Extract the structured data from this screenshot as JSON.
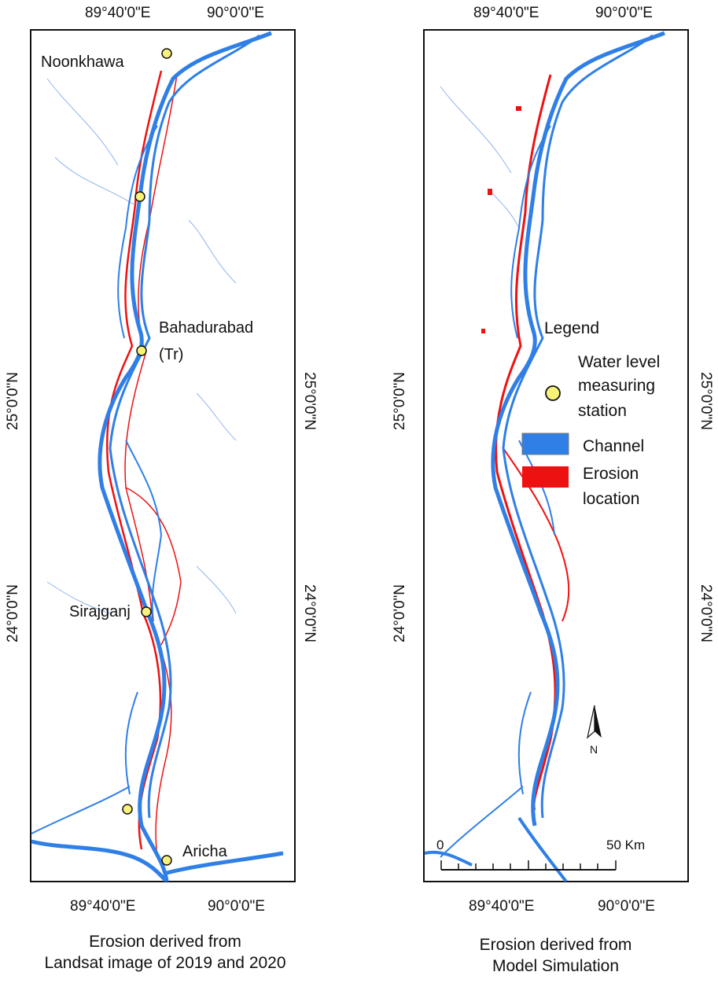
{
  "panels": [
    {
      "id": "left",
      "caption_line1": "Erosion derived from",
      "caption_line2": "Landsat image of 2019 and 2020",
      "top_ticks": [
        "89°40'0\"E",
        "90°0'0\"E"
      ],
      "bottom_ticks": [
        "89°40'0\"E",
        "90°0'0\"E"
      ],
      "left_ticks": [
        "25°0'0\"N",
        "24°0'0\"N"
      ],
      "right_ticks": [
        "25°0'0\"N",
        "24°0'0\"N"
      ],
      "stations": [
        {
          "name": "Noonkhawa",
          "icon": "station-circle"
        },
        {
          "name": "",
          "icon": "station-circle"
        },
        {
          "name": "Bahadurabad",
          "name2": "(Tr)",
          "icon": "station-circle"
        },
        {
          "name": "Sirajganj",
          "icon": "station-circle"
        },
        {
          "name": "",
          "icon": "station-circle"
        },
        {
          "name": "Aricha",
          "icon": "station-circle"
        }
      ]
    },
    {
      "id": "right",
      "caption_line1": "Erosion derived from",
      "caption_line2": "Model Simulation",
      "top_ticks": [
        "89°40'0\"E",
        "90°0'0\"E"
      ],
      "bottom_ticks": [
        "89°40'0\"E",
        "90°0'0\"E"
      ],
      "left_ticks": [
        "25°0'0\"N",
        "24°0'0\"N"
      ],
      "right_ticks": [
        "25°0'0\"N",
        "24°0'0\"N"
      ]
    }
  ],
  "legend": {
    "title": "Legend",
    "station_label_1": "Water level",
    "station_label_2": "measuring",
    "station_label_3": "station",
    "channel_label": "Channel",
    "erosion_label_1": "Erosion",
    "erosion_label_2": "location"
  },
  "north_arrow": {
    "label": "N",
    "icon": "north-arrow-icon"
  },
  "scale_bar": {
    "start_label": "0",
    "end_label": "50 Km"
  },
  "colors": {
    "channel": "#2f7fe6",
    "erosion": "#ee1111",
    "station_fill": "#f7f27a",
    "frame": "#111111"
  }
}
